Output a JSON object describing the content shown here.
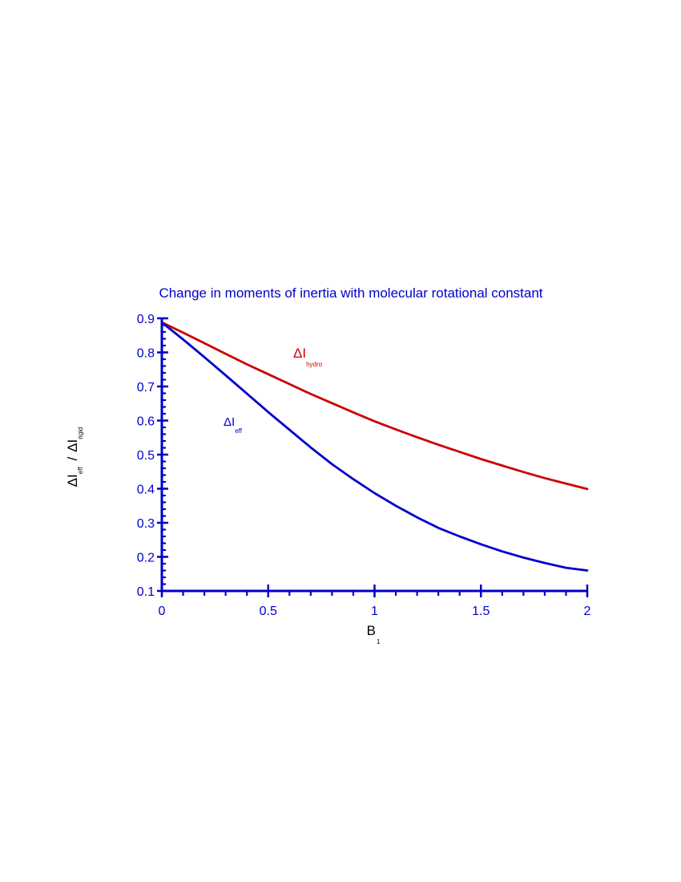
{
  "chart_data": {
    "type": "line",
    "title": "Change in moments of inertia with molecular rotational constant",
    "xlabel": {
      "main": "B",
      "sub": "1"
    },
    "ylabel": {
      "part1_main": "ΔI",
      "part1_sub": "eff",
      "slash": "/",
      "part2_main": "ΔI",
      "part2_sub": "rigid"
    },
    "xlim": [
      0,
      2
    ],
    "ylim": [
      0.1,
      0.9
    ],
    "x_ticks": [
      {
        "value": 0,
        "label": "0"
      },
      {
        "value": 0.5,
        "label": "0.5"
      },
      {
        "value": 1,
        "label": "1"
      },
      {
        "value": 1.5,
        "label": "1.5"
      },
      {
        "value": 2,
        "label": "2"
      }
    ],
    "y_ticks": [
      {
        "value": 0.1,
        "label": "0.1"
      },
      {
        "value": 0.2,
        "label": "0.2"
      },
      {
        "value": 0.3,
        "label": "0.3"
      },
      {
        "value": 0.4,
        "label": "0.4"
      },
      {
        "value": 0.5,
        "label": "0.5"
      },
      {
        "value": 0.6,
        "label": "0.6"
      },
      {
        "value": 0.7,
        "label": "0.7"
      },
      {
        "value": 0.8,
        "label": "0.8"
      },
      {
        "value": 0.9,
        "label": "0.9"
      }
    ],
    "x_minor_step": 0.1,
    "y_minor_step": 0.02,
    "grid": false,
    "series": [
      {
        "name_main": "ΔI",
        "name_sub": "hydro",
        "color": "#cc0000",
        "x": [
          0,
          0.1,
          0.2,
          0.3,
          0.4,
          0.5,
          0.6,
          0.7,
          0.8,
          0.9,
          1.0,
          1.1,
          1.2,
          1.3,
          1.4,
          1.5,
          1.6,
          1.7,
          1.8,
          1.9,
          2.0
        ],
        "y": [
          0.888,
          0.858,
          0.827,
          0.796,
          0.765,
          0.736,
          0.707,
          0.678,
          0.651,
          0.624,
          0.598,
          0.574,
          0.551,
          0.529,
          0.508,
          0.487,
          0.468,
          0.449,
          0.431,
          0.415,
          0.399
        ]
      },
      {
        "name_main": "ΔI",
        "name_sub": "eff",
        "color": "#0000cc",
        "x": [
          0,
          0.1,
          0.2,
          0.3,
          0.4,
          0.5,
          0.6,
          0.7,
          0.8,
          0.9,
          1.0,
          1.1,
          1.2,
          1.3,
          1.4,
          1.5,
          1.6,
          1.7,
          1.8,
          1.9,
          2.0
        ],
        "y": [
          0.888,
          0.838,
          0.786,
          0.733,
          0.679,
          0.625,
          0.573,
          0.521,
          0.472,
          0.428,
          0.387,
          0.35,
          0.316,
          0.285,
          0.26,
          0.237,
          0.216,
          0.198,
          0.182,
          0.168,
          0.16
        ]
      }
    ],
    "colors": {
      "axis": "#0000cc",
      "title": "#0000cc",
      "xlabel": "#000000"
    }
  }
}
